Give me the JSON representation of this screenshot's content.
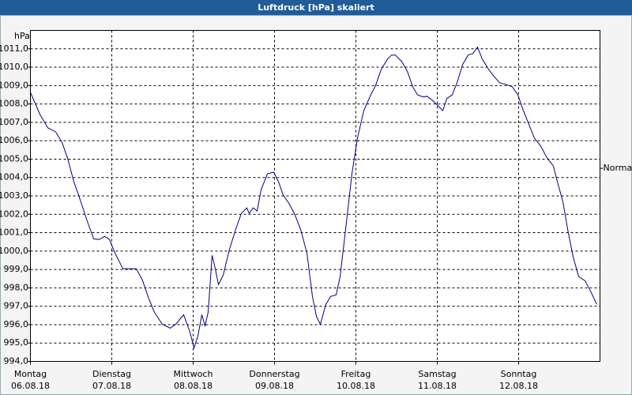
{
  "chart_data": {
    "type": "line",
    "title": "Luftdruck [hPa] skaliert",
    "y_label": "hPa",
    "x": [
      0,
      0.117,
      0.214,
      0.311,
      0.388,
      0.456,
      0.534,
      0.602,
      0.699,
      0.777,
      0.845,
      0.913,
      0.971,
      1.039,
      1.136,
      1.233,
      1.301,
      1.379,
      1.456,
      1.524,
      1.621,
      1.718,
      1.786,
      1.883,
      1.961,
      2.01,
      2.058,
      2.107,
      2.146,
      2.184,
      2.233,
      2.272,
      2.311,
      2.369,
      2.447,
      2.524,
      2.592,
      2.66,
      2.689,
      2.738,
      2.786,
      2.835,
      2.913,
      2.99,
      3.049,
      3.107,
      3.175,
      3.243,
      3.32,
      3.398,
      3.466,
      3.515,
      3.563,
      3.631,
      3.689,
      3.757,
      3.806,
      3.874,
      3.951,
      4.019,
      4.097,
      4.175,
      4.243,
      4.311,
      4.388,
      4.437,
      4.485,
      4.563,
      4.631,
      4.699,
      4.757,
      4.825,
      4.874,
      4.951,
      5.019,
      5.068,
      5.117,
      5.184,
      5.243,
      5.311,
      5.379,
      5.437,
      5.495,
      5.553,
      5.631,
      5.699,
      5.767,
      5.845,
      5.922,
      5.99,
      6.058,
      6.136,
      6.194,
      6.272,
      6.35,
      6.427,
      6.476,
      6.544,
      6.602,
      6.67,
      6.738,
      6.816,
      6.893,
      6.961
    ],
    "series": [
      {
        "name": "Luftdruck",
        "color": "#000080",
        "values": [
          1008.63,
          1007.43,
          1006.7,
          1006.48,
          1005.92,
          1005.06,
          1003.77,
          1002.91,
          1001.62,
          1000.67,
          1000.63,
          1000.8,
          1000.63,
          999.9,
          999.04,
          999.04,
          999.04,
          998.39,
          997.4,
          996.67,
          996.02,
          995.81,
          996.02,
          996.54,
          995.59,
          994.73,
          995.38,
          996.54,
          995.94,
          996.67,
          999.77,
          999.04,
          998.18,
          998.69,
          1000.11,
          1001.19,
          1002.05,
          1002.35,
          1002.05,
          1002.35,
          1002.18,
          1003.34,
          1004.2,
          1004.29,
          1003.77,
          1003.04,
          1002.61,
          1002.05,
          1001.19,
          999.9,
          997.53,
          996.45,
          996.02,
          997.1,
          997.53,
          997.62,
          998.61,
          1001.19,
          1004.2,
          1006.14,
          1007.64,
          1008.42,
          1009.02,
          1009.88,
          1010.44,
          1010.66,
          1010.66,
          1010.31,
          1009.79,
          1008.93,
          1008.5,
          1008.38,
          1008.42,
          1008.16,
          1007.86,
          1007.64,
          1008.29,
          1008.5,
          1009.15,
          1010.14,
          1010.66,
          1010.74,
          1011.09,
          1010.44,
          1009.88,
          1009.49,
          1009.15,
          1009.06,
          1008.93,
          1008.5,
          1007.64,
          1006.78,
          1006.14,
          1005.71,
          1005.06,
          1004.63,
          1003.77,
          1002.69,
          1001.19,
          999.68,
          998.61,
          998.39,
          997.74,
          997.1
        ]
      }
    ],
    "xlim": [
      0,
      7
    ],
    "xticks": [
      {
        "value": 0,
        "label": "Montag\n06.08.18"
      },
      {
        "value": 1,
        "label": "Dienstag\n07.08.18"
      },
      {
        "value": 2,
        "label": "Mittwoch\n08.08.18"
      },
      {
        "value": 3,
        "label": "Donnerstag\n09.08.18"
      },
      {
        "value": 4,
        "label": "Freitag\n10.08.18"
      },
      {
        "value": 5,
        "label": "Samstag\n11.08.18"
      },
      {
        "value": 6,
        "label": "Sonntag\n12.08.18"
      }
    ],
    "ylim": [
      994,
      1012
    ],
    "yticks": [
      {
        "value": 994,
        "label": "994,0"
      },
      {
        "value": 995,
        "label": "995,0"
      },
      {
        "value": 996,
        "label": "996,0"
      },
      {
        "value": 997,
        "label": "997,0"
      },
      {
        "value": 998,
        "label": "998,0"
      },
      {
        "value": 999,
        "label": "999,0"
      },
      {
        "value": 1000,
        "label": "1000,0"
      },
      {
        "value": 1001,
        "label": "1001,0"
      },
      {
        "value": 1002,
        "label": "1002,0"
      },
      {
        "value": 1003,
        "label": "1003,0"
      },
      {
        "value": 1004,
        "label": "1004,0"
      },
      {
        "value": 1005,
        "label": "1005,0"
      },
      {
        "value": 1006,
        "label": "1006,0"
      },
      {
        "value": 1007,
        "label": "1007,0"
      },
      {
        "value": 1008,
        "label": "1008,0"
      },
      {
        "value": 1009,
        "label": "1009,0"
      },
      {
        "value": 1010,
        "label": "1010,0"
      },
      {
        "value": 1011,
        "label": "1011,0"
      }
    ],
    "annotations": [
      {
        "text": "Normal",
        "y": 1004.5
      }
    ],
    "grid": true
  }
}
